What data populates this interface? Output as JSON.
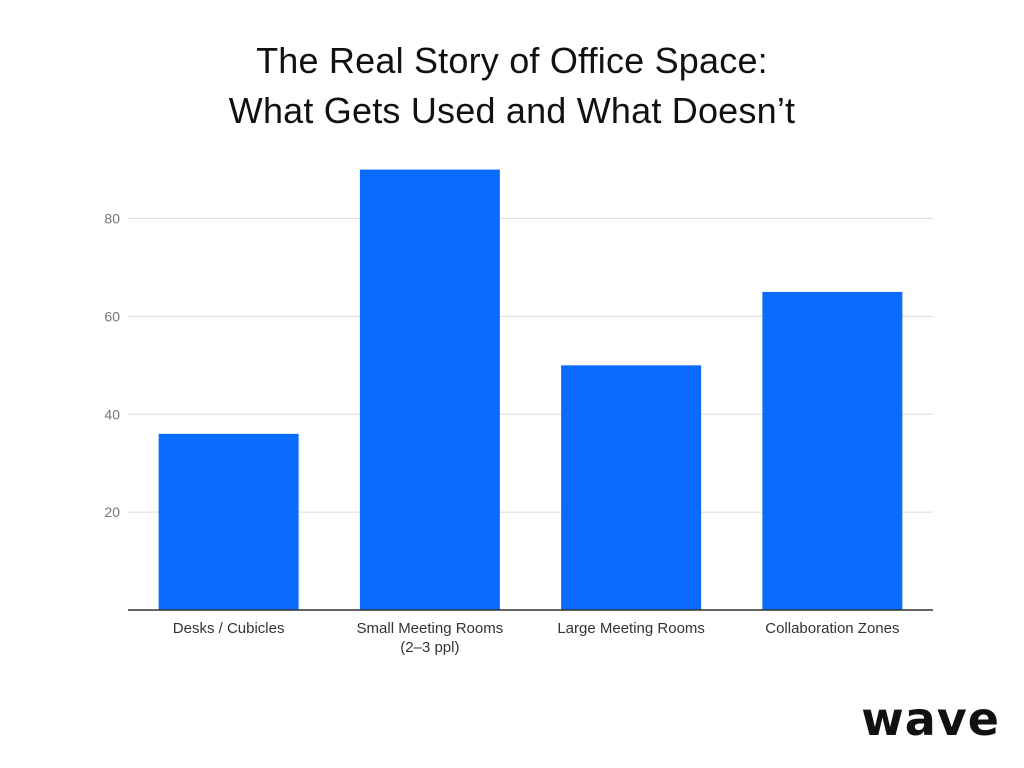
{
  "title_lines": [
    "The Real Story of Office Space:",
    "What Gets Used and What Doesn’t"
  ],
  "brand": {
    "logo_text": "wave"
  },
  "colors": {
    "bar": "#0a6cff",
    "grid": "#dcdcdc",
    "tick_label": "#757575",
    "category_label": "#333333",
    "baseline": "#333333"
  },
  "chart_data": {
    "type": "bar",
    "title": "The Real Story of Office Space: What Gets Used and What Doesn’t",
    "xlabel": "",
    "ylabel": "",
    "categories": [
      [
        "Desks / Cubicles"
      ],
      [
        "Small Meeting Rooms",
        "(2–3 ppl)"
      ],
      [
        "Large Meeting Rooms"
      ],
      [
        "Collaboration Zones"
      ]
    ],
    "values": [
      36,
      90,
      50,
      65
    ],
    "ylim": [
      0,
      94
    ],
    "yticks": [
      20,
      40,
      60,
      80
    ],
    "grid": true,
    "legend": "none"
  }
}
